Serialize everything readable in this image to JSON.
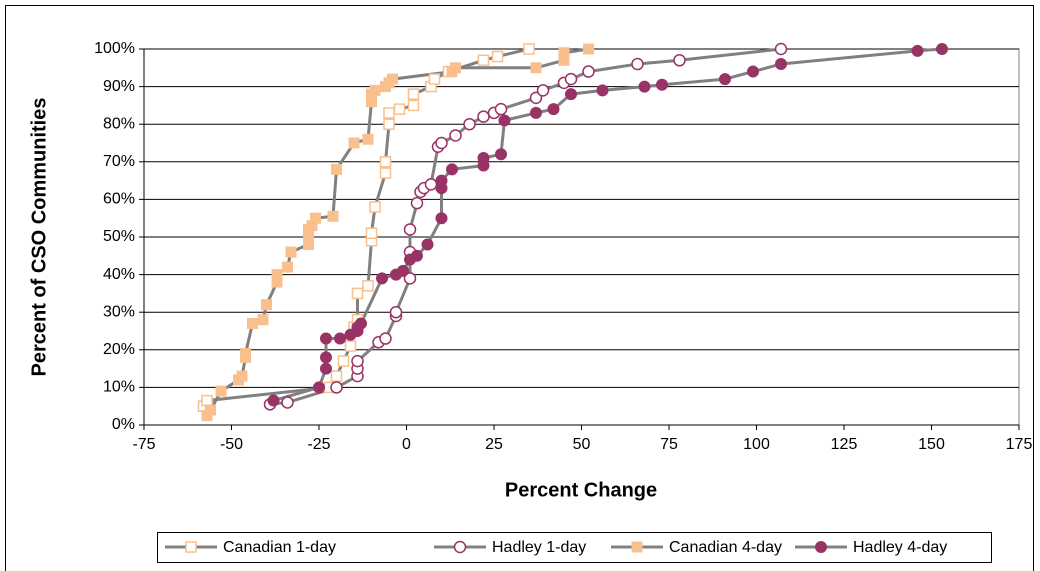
{
  "chart_data": {
    "type": "line",
    "xlabel": "Percent Change",
    "ylabel": "Percent of CSO Communities",
    "xlim": [
      -75,
      175
    ],
    "xticks": [
      -75,
      -50,
      -25,
      0,
      25,
      50,
      75,
      100,
      125,
      150,
      175
    ],
    "ylim": [
      0,
      100
    ],
    "yticks": [
      {
        "value": 0,
        "label": "0%"
      },
      {
        "value": 10,
        "label": "10%"
      },
      {
        "value": 20,
        "label": "20%"
      },
      {
        "value": 30,
        "label": "30%"
      },
      {
        "value": 40,
        "label": "40%"
      },
      {
        "value": 50,
        "label": "50%"
      },
      {
        "value": 60,
        "label": "60%"
      },
      {
        "value": 70,
        "label": "70%"
      },
      {
        "value": 80,
        "label": "80%"
      },
      {
        "value": 90,
        "label": "90%"
      },
      {
        "value": 100,
        "label": "100%"
      }
    ],
    "grid": true,
    "legend": "bottom",
    "line_color": "#808080",
    "series": [
      {
        "name": "Canadian 1-day",
        "color": "#f9bf8c",
        "marker": "square-open",
        "x": [
          -58,
          -57,
          -22,
          -20,
          -18,
          -16,
          -15,
          -14,
          -14,
          -11,
          -10,
          -10,
          -9,
          -6,
          -6,
          -5,
          -5,
          -2,
          2,
          2,
          7,
          8,
          12,
          22,
          26,
          35
        ],
        "values": [
          5,
          6.5,
          10,
          13,
          17,
          21,
          26,
          28,
          35,
          37,
          49,
          51,
          58,
          67,
          70,
          80,
          83,
          84,
          85,
          88,
          90,
          92,
          94,
          97,
          98,
          100
        ]
      },
      {
        "name": "Hadley 1-day",
        "color": "#993366",
        "marker": "circle-open",
        "x": [
          -39,
          -34,
          -20,
          -14,
          -14,
          -14,
          -8,
          -6,
          -3,
          -3,
          1,
          1,
          1,
          3,
          4,
          5,
          7,
          9,
          10,
          14,
          18,
          22,
          25,
          27,
          37,
          39,
          45,
          47,
          52,
          66,
          78,
          107
        ],
        "values": [
          5.5,
          6,
          10,
          13,
          15,
          17,
          22,
          23,
          29,
          30,
          39,
          46,
          52,
          59,
          62,
          63,
          64,
          74,
          75,
          77,
          80,
          82,
          83,
          84,
          87,
          89,
          91,
          92,
          94,
          96,
          97,
          100
        ]
      },
      {
        "name": "Canadian 4-day",
        "color": "#f9bf8c",
        "marker": "square",
        "x": [
          -57,
          -56,
          -53,
          -48,
          -47,
          -46,
          -46,
          -44,
          -41,
          -40,
          -37,
          -37,
          -34,
          -33,
          -28,
          -28,
          -28,
          -27,
          -26,
          -21,
          -20,
          -15,
          -11,
          -10,
          -10,
          -9,
          -6,
          -5,
          -4,
          13,
          14,
          37,
          45,
          45,
          52
        ],
        "values": [
          2.5,
          4,
          9,
          12,
          13,
          18,
          19,
          27,
          28,
          32,
          38,
          40,
          42,
          46,
          48,
          50,
          52,
          53,
          55,
          55.5,
          68,
          75,
          76,
          86,
          88,
          89,
          90,
          91,
          92,
          94,
          95,
          95,
          97,
          99,
          100
        ]
      },
      {
        "name": "Hadley 4-day",
        "color": "#993366",
        "marker": "circle",
        "x": [
          -38,
          -25,
          -23,
          -23,
          -23,
          -19,
          -16,
          -14,
          -14,
          -13,
          -7,
          -3,
          -1,
          1,
          3,
          6,
          10,
          10,
          10,
          13,
          22,
          22,
          27,
          28,
          37,
          42,
          47,
          56,
          68,
          73,
          91,
          99,
          107,
          146,
          153
        ],
        "values": [
          6.5,
          10,
          15,
          18,
          23,
          23,
          24,
          25,
          26,
          27,
          39,
          40,
          41,
          44,
          45,
          48,
          55,
          63,
          65,
          68,
          69,
          71,
          72,
          81,
          83,
          84,
          88,
          89,
          90,
          90.5,
          92,
          94,
          96,
          99.5,
          100
        ]
      }
    ]
  }
}
